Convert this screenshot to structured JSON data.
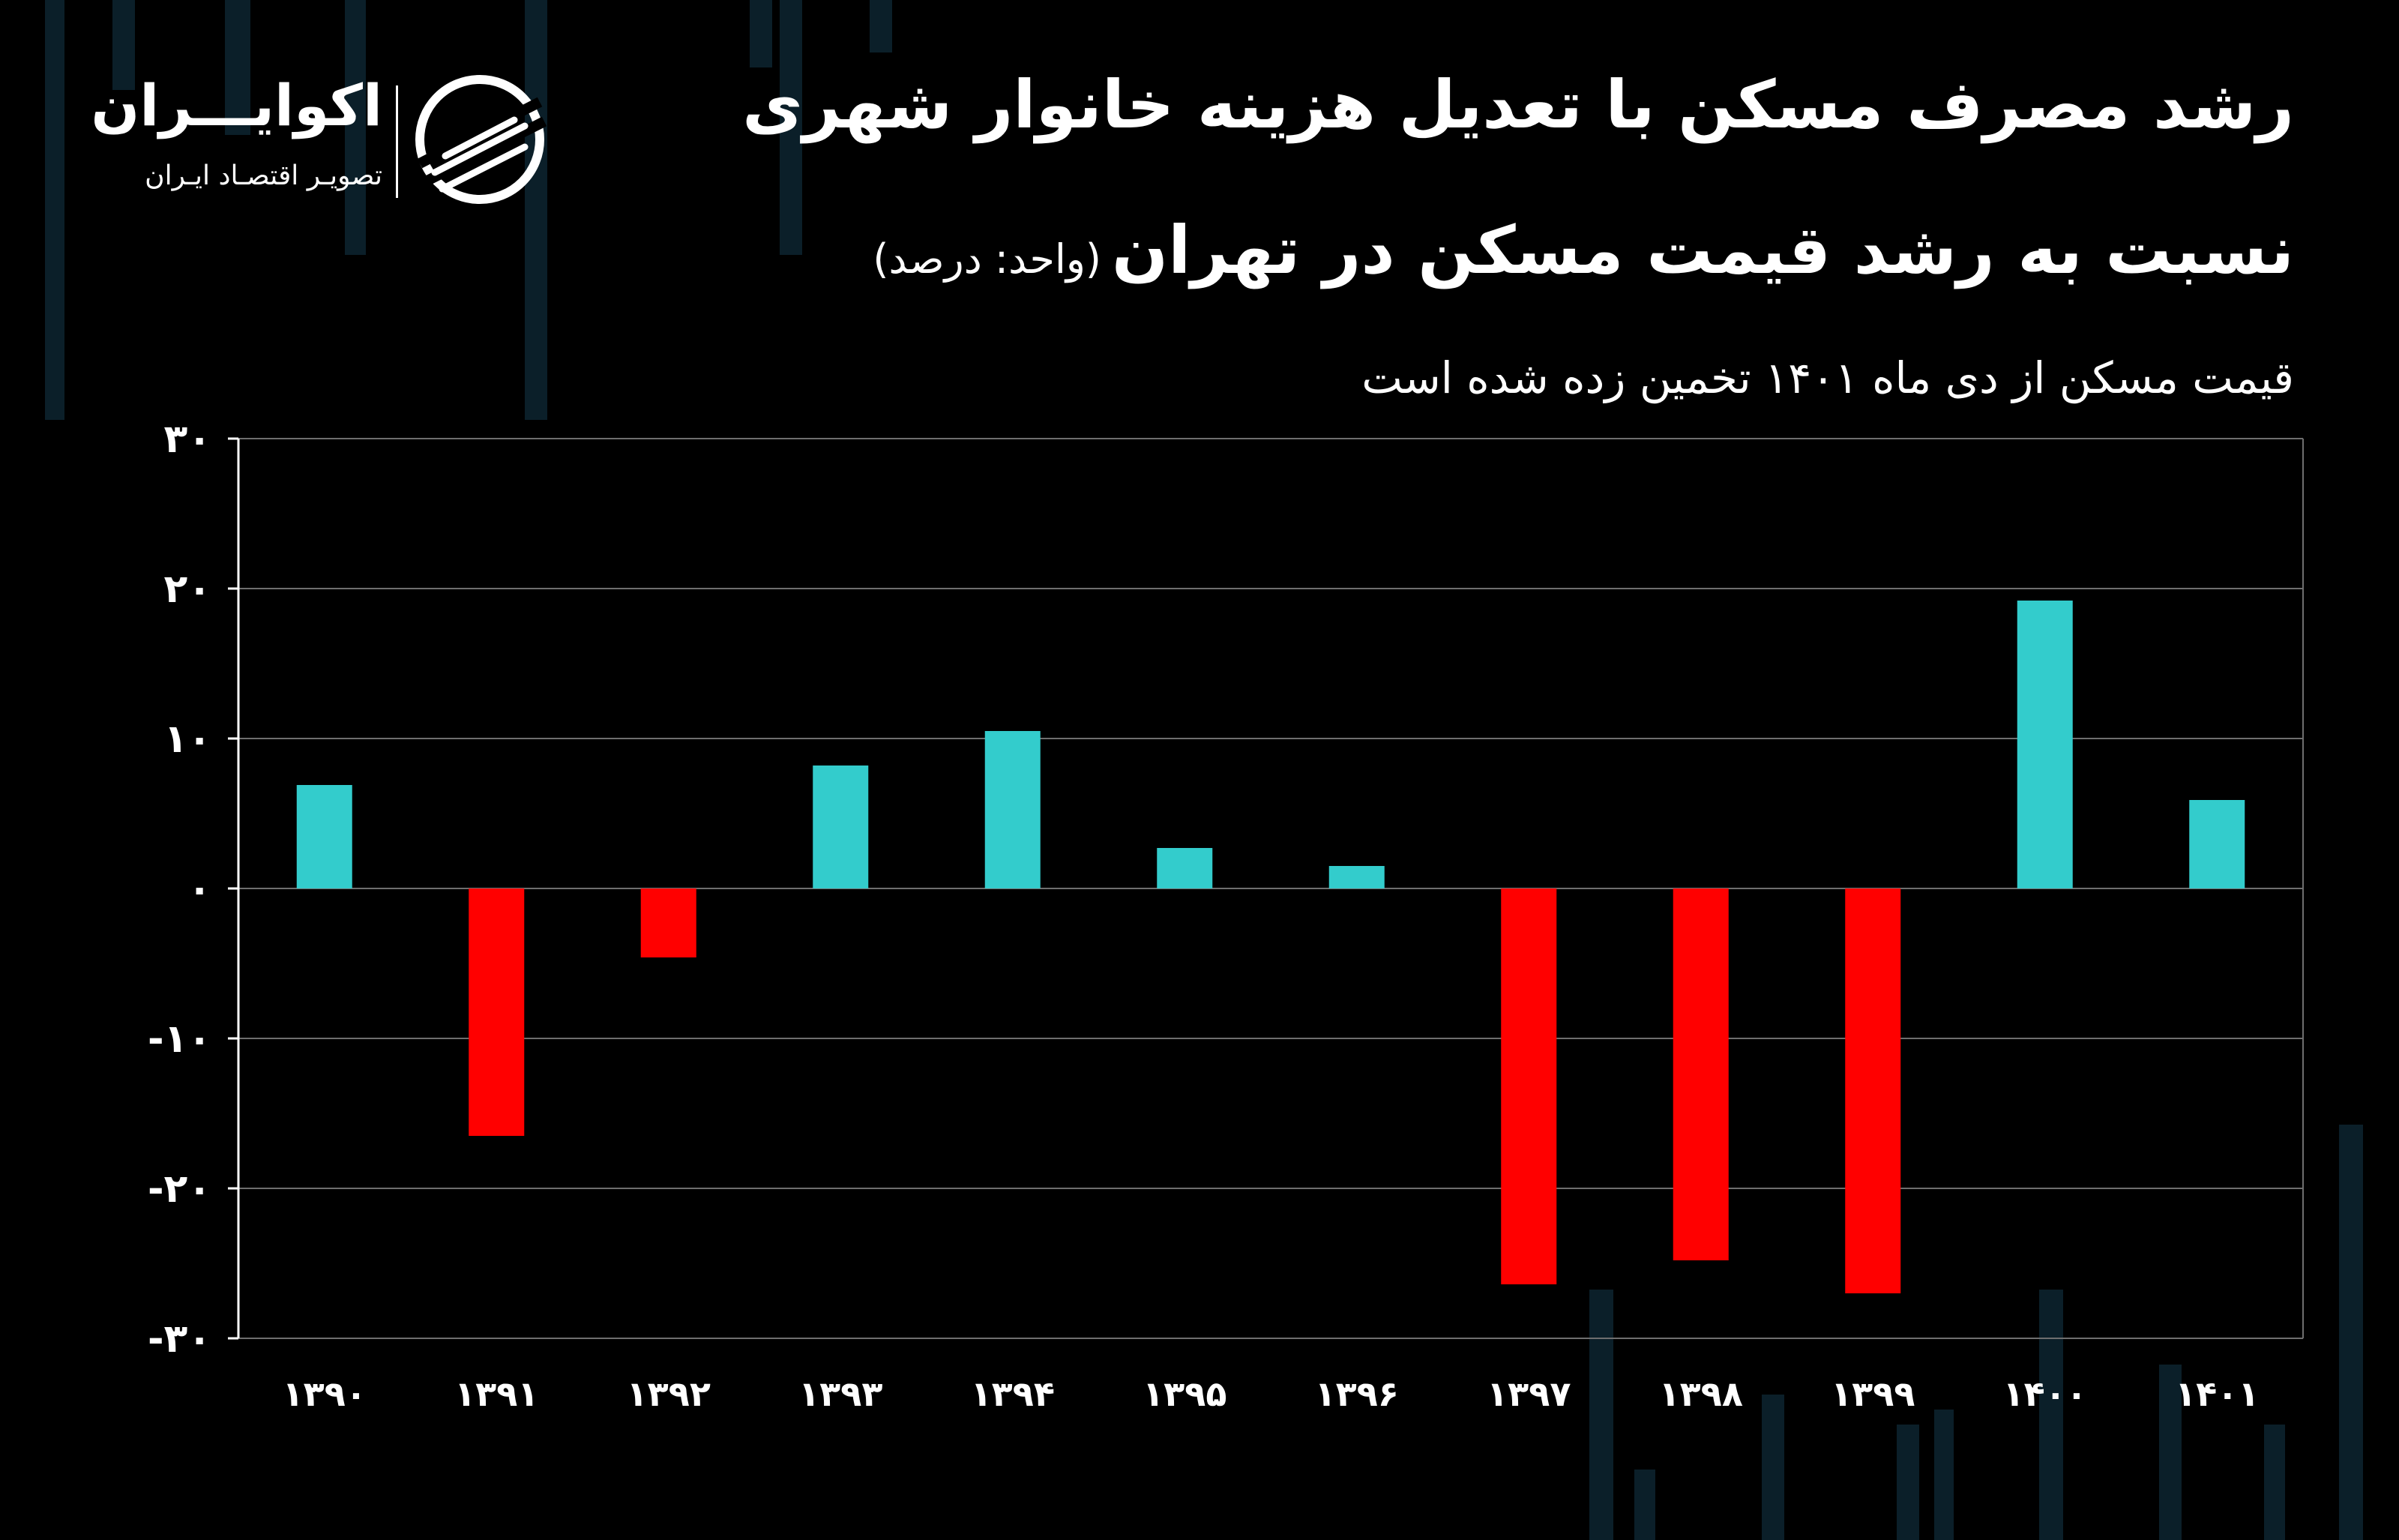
{
  "header": {
    "title_line1": "رشد مصرف مسکن با تعدیل هزینه خانوار شهری",
    "title_line2": "نسبت به رشد قیمت مسکن در تهران",
    "unit": "(واحد: درصد)",
    "subtitle": "قیمت مسکن از دی ماه ۱۴۰۱ تخمین زده شده است"
  },
  "logo": {
    "name": "اکوایـــران",
    "tagline": "تصویـر اقتصـاد ایـران",
    "icon": "ekoiran-logo-icon"
  },
  "colors": {
    "background": "#000000",
    "positive": "#33cccc",
    "negative": "#ff0000",
    "grid": "#6e6e6e",
    "text": "#ffffff"
  },
  "chart_data": {
    "type": "bar",
    "categories": [
      "۱۳۹۰",
      "۱۳۹۱",
      "۱۳۹۲",
      "۱۳۹۳",
      "۱۳۹۴",
      "۱۳۹۵",
      "۱۳۹۶",
      "۱۳۹۷",
      "۱۳۹۸",
      "۱۳۹۹",
      "۱۴۰۰",
      "۱۴۰۱"
    ],
    "values": [
      6.9,
      -16.5,
      -4.6,
      8.2,
      10.5,
      2.7,
      1.5,
      -26.4,
      -24.8,
      -27.0,
      19.2,
      5.9
    ],
    "ylim": [
      -30,
      30
    ],
    "yticks": [
      30,
      20,
      10,
      0,
      -10,
      -20,
      -30
    ],
    "ytick_labels": [
      "۳۰",
      "۲۰",
      "۱۰",
      "۰",
      "-۱۰",
      "-۲۰",
      "-۳۰"
    ],
    "xlabel": "",
    "ylabel": "",
    "grid": true,
    "legend": "none"
  }
}
